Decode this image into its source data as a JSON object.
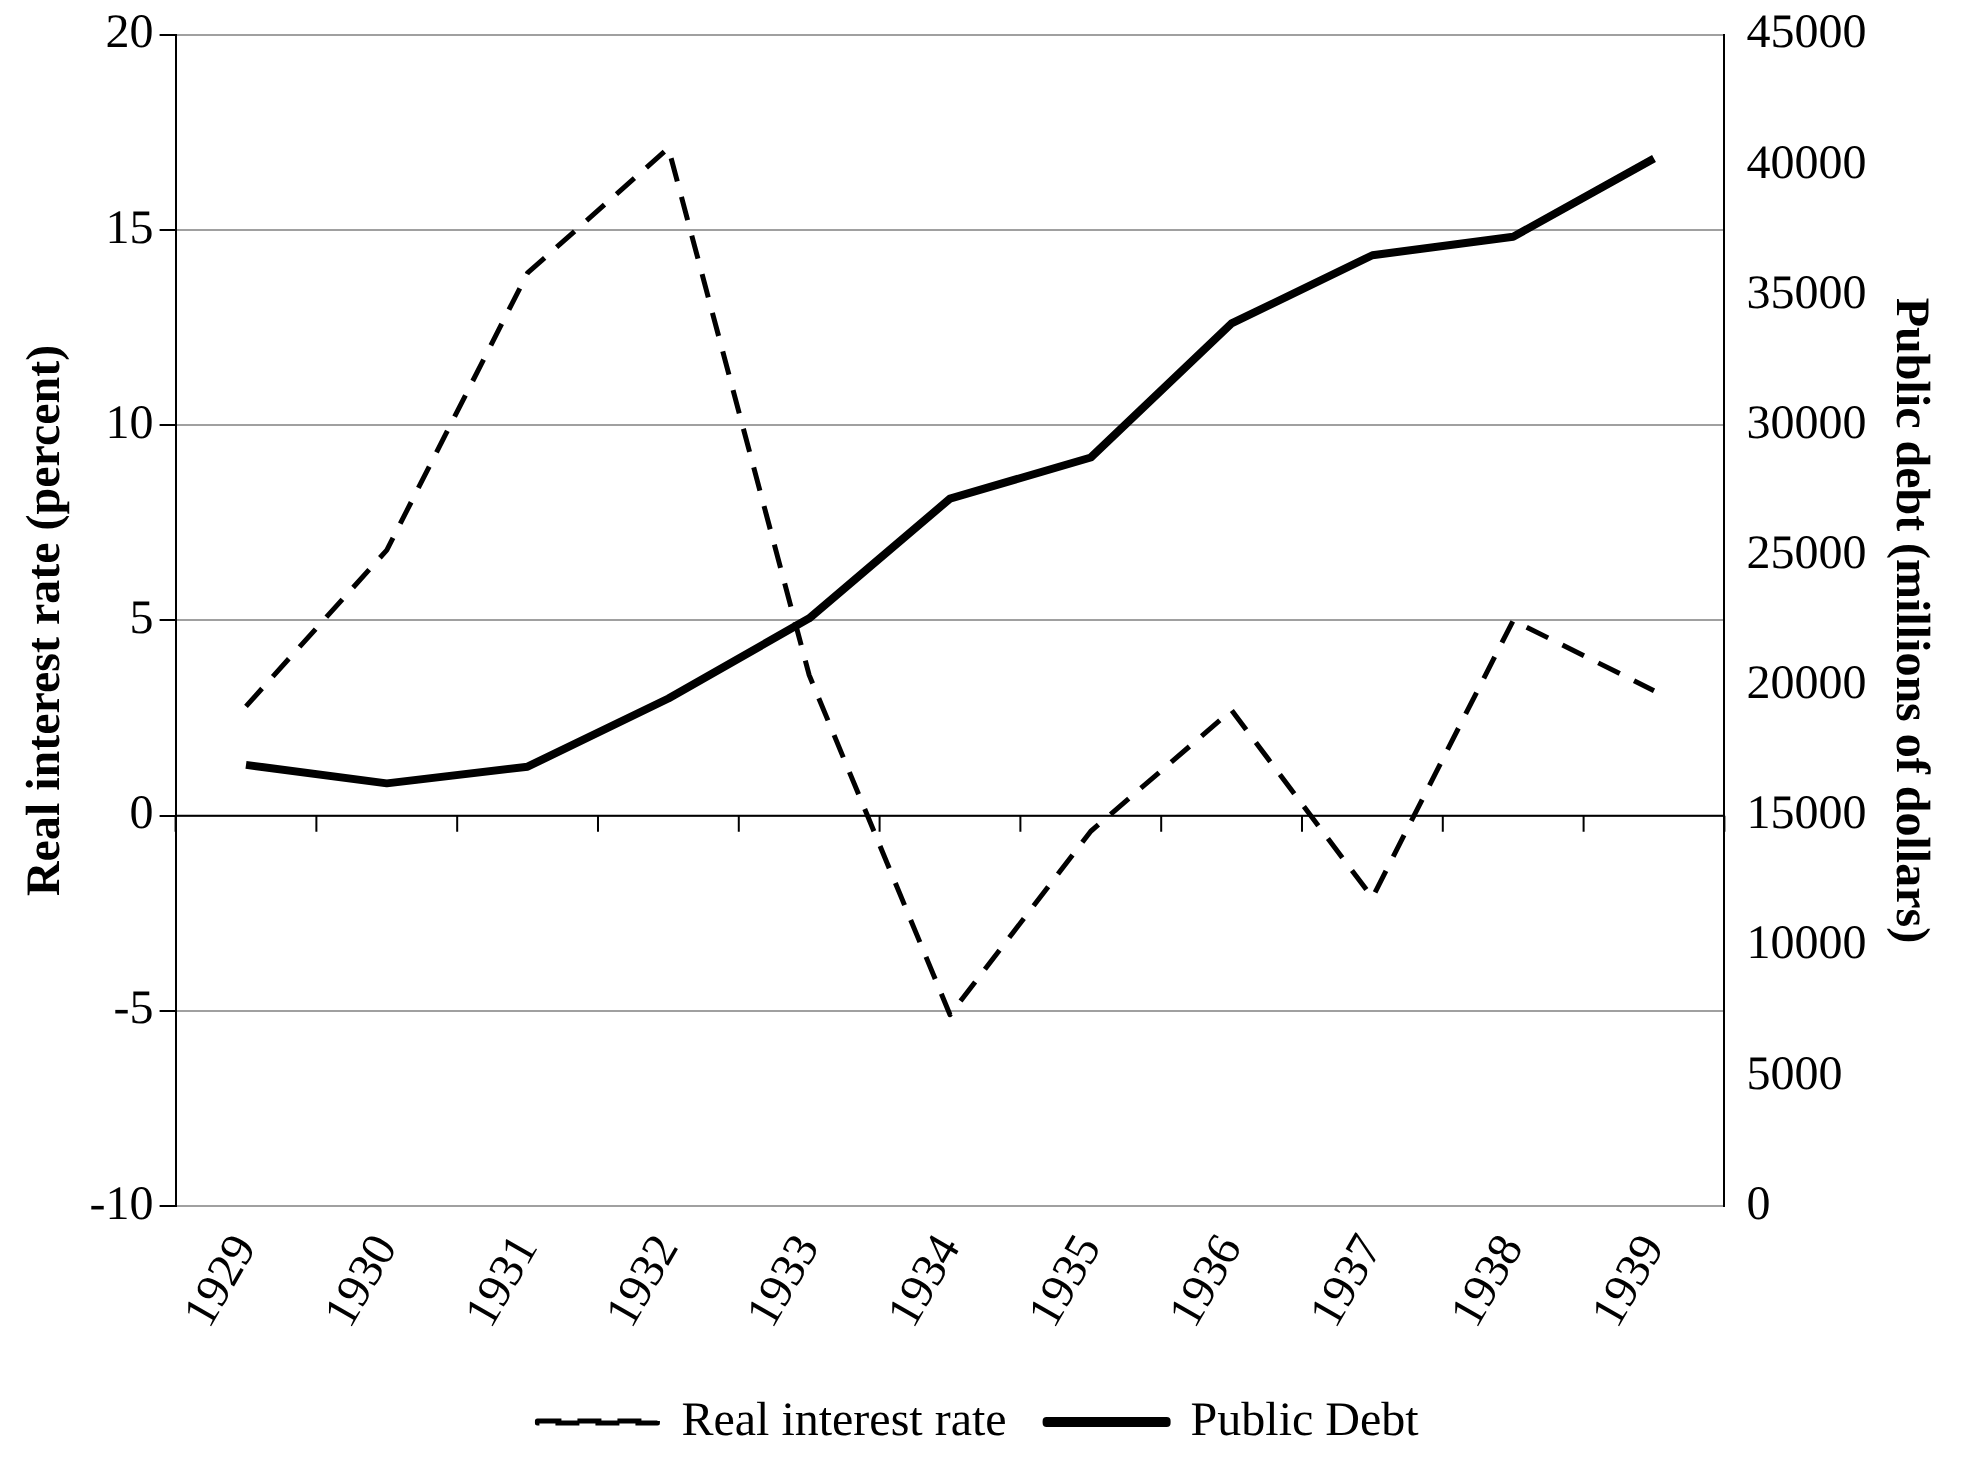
{
  "chart_data": {
    "type": "line",
    "categories": [
      "1929",
      "1930",
      "1931",
      "1932",
      "1933",
      "1934",
      "1935",
      "1936",
      "1937",
      "1938",
      "1939"
    ],
    "series": [
      {
        "name": "Real interest rate",
        "color": "#000000",
        "line_style": "dashed",
        "values": [
          2.8,
          6.8,
          13.9,
          17.1,
          3.6,
          -5.1,
          -0.4,
          2.7,
          -2.1,
          5.0,
          3.2
        ]
      },
      {
        "name": "Public Debt",
        "color": "#000000",
        "line_style": "solid",
        "axis": "y2",
        "values": [
          16950,
          16240,
          16880,
          19500,
          22580,
          27180,
          28760,
          33910,
          36530,
          37240,
          40250
        ]
      }
    ],
    "ylabel": "Real interest rate (percent)",
    "y2label": "Public debt (millions of dollars)",
    "ylim": [
      -10,
      20
    ],
    "yticks": [
      -10,
      -5,
      0,
      5,
      10,
      15,
      20
    ],
    "y2lim": [
      0,
      45000
    ],
    "y2ticks": [
      0,
      5000,
      10000,
      15000,
      20000,
      25000,
      30000,
      35000,
      40000,
      45000
    ],
    "grid": "y",
    "legend": "bottom",
    "marker": "none"
  }
}
